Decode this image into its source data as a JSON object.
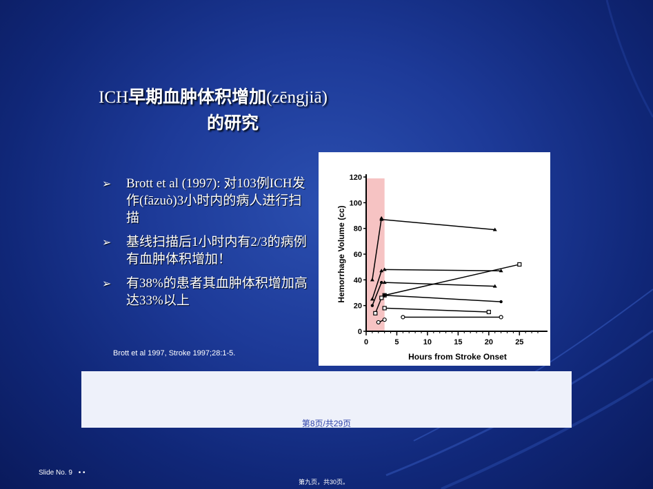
{
  "title": {
    "line1_prefix": "ICH",
    "line1_bold": "早期血肿体积增加",
    "line1_suffix": "(zēngjiā)",
    "line2": "的研究"
  },
  "bullets": [
    {
      "marker": "➢",
      "text": "Brott et al (1997): 对103例ICH发作(fāzuò)3小时内的病人进行扫描"
    },
    {
      "marker": "➢",
      "text": "基线扫描后1小时内有2/3的病例有血肿体积增加！"
    },
    {
      "marker": "➢",
      "text": "有38%的患者其血肿体积增加高达33%以上"
    }
  ],
  "citation": "Brott et al 1997, Stroke 1997;28:1-5.",
  "page_indicator": "第8页/共29页",
  "slide_number": "Slide No. 9",
  "slide_dots": "•  •",
  "bottom_page": "第九页，共30页。",
  "colors": {
    "highlight": "#f4b8b8",
    "background": "#1d3a98",
    "panel": "#eef1fa"
  },
  "chart_data": {
    "type": "line",
    "xlabel": "Hours from Stroke Onset",
    "ylabel": "Hemorrhage Volume (cc)",
    "xlim": [
      0,
      28
    ],
    "ylim": [
      0,
      120
    ],
    "xticks": [
      0,
      5,
      10,
      15,
      20,
      25
    ],
    "yticks": [
      0,
      20,
      40,
      60,
      80,
      100,
      120
    ],
    "highlight_region": {
      "x_from": 0,
      "x_to": 3
    },
    "series": [
      {
        "values": [
          [
            2.5,
            87
          ],
          [
            21,
            79
          ]
        ],
        "marker": "triangle"
      },
      {
        "values": [
          [
            3,
            48
          ],
          [
            22,
            47
          ]
        ],
        "marker": "triangle"
      },
      {
        "values": [
          [
            3,
            38
          ],
          [
            21,
            35
          ]
        ],
        "marker": "triangle"
      },
      {
        "values": [
          [
            3,
            28
          ],
          [
            25,
            52
          ]
        ],
        "marker": "square"
      },
      {
        "values": [
          [
            3,
            28
          ],
          [
            22,
            23
          ]
        ],
        "marker": "dot"
      },
      {
        "values": [
          [
            3,
            18
          ],
          [
            20,
            15
          ]
        ],
        "marker": "square"
      },
      {
        "values": [
          [
            6,
            11
          ],
          [
            22,
            11
          ]
        ],
        "marker": "circle"
      },
      {
        "values": [
          [
            1,
            40
          ],
          [
            2.5,
            88
          ]
        ],
        "marker": "triangle"
      },
      {
        "values": [
          [
            1,
            25
          ],
          [
            2.5,
            47
          ]
        ],
        "marker": "triangle"
      },
      {
        "values": [
          [
            1,
            20
          ],
          [
            2.5,
            38
          ]
        ],
        "marker": "dot"
      },
      {
        "values": [
          [
            1.5,
            14
          ],
          [
            2.5,
            26
          ]
        ],
        "marker": "square"
      },
      {
        "values": [
          [
            2,
            7
          ],
          [
            3,
            9
          ]
        ],
        "marker": "circle"
      }
    ]
  }
}
